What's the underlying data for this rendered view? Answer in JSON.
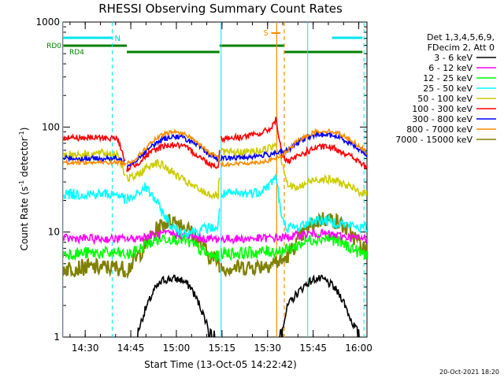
{
  "chart_data": {
    "type": "line",
    "title": "RHESSI Observing Summary Count Rates",
    "xlabel": "Start Time (13-Oct-05 14:22:42)",
    "ylabel_main": "Count Rate (s",
    "ylabel_sup1": "-1",
    "ylabel_mid": " detector",
    "ylabel_sup2": "-1",
    "ylabel_end": ")",
    "y_scale": "log",
    "ylim": [
      1,
      1000
    ],
    "xlim_minutes": [
      0,
      100
    ],
    "x_ticks": [
      {
        "label": "14:30",
        "minute": 7.3
      },
      {
        "label": "14:45",
        "minute": 22.3
      },
      {
        "label": "15:00",
        "minute": 37.3
      },
      {
        "label": "15:15",
        "minute": 52.3
      },
      {
        "label": "15:30",
        "minute": 67.3
      },
      {
        "label": "15:45",
        "minute": 82.3
      },
      {
        "label": "16:00",
        "minute": 97.3
      }
    ],
    "y_ticks": [
      {
        "label": "1",
        "value": 1
      },
      {
        "label": "10",
        "value": 10
      },
      {
        "label": "100",
        "value": 100
      },
      {
        "label": "1000",
        "value": 1000
      }
    ],
    "legend_header": [
      "Det 1,3,4,5,6,9,",
      "FDecim 2, Att 0"
    ],
    "legend_position": "right",
    "timestamp": "20-Oct-2021 18:20",
    "flags": {
      "n_label": "N",
      "s_label": "S",
      "rd0_label": "RD0",
      "rd4_label": "RD4"
    },
    "data_gaps_minutes": [
      [
        20.5,
        21
      ],
      [
        51.5,
        52
      ]
    ],
    "series": [
      {
        "name": "3 - 6 keV",
        "color": "#000000",
        "values": [
          [
            0,
            1.0
          ],
          [
            6,
            1.0
          ],
          [
            12,
            1.0
          ],
          [
            18,
            1.0
          ],
          [
            21,
            1.0
          ],
          [
            24,
            1.0
          ],
          [
            27,
            1.8
          ],
          [
            30,
            2.8
          ],
          [
            33,
            3.5
          ],
          [
            36,
            3.6
          ],
          [
            39,
            3.5
          ],
          [
            42,
            3.0
          ],
          [
            45,
            2.0
          ],
          [
            48,
            1.2
          ],
          [
            51,
            1.0
          ],
          [
            52,
            1.0
          ],
          [
            58,
            1.0
          ],
          [
            64,
            1.0
          ],
          [
            70,
            1.0
          ],
          [
            72,
            1.2
          ],
          [
            74,
            2.0
          ],
          [
            77,
            2.6
          ],
          [
            80,
            3.2
          ],
          [
            83,
            3.6
          ],
          [
            86,
            3.5
          ],
          [
            89,
            3.0
          ],
          [
            92,
            2.3
          ],
          [
            95,
            1.4
          ],
          [
            98,
            1.0
          ],
          [
            100,
            1.0
          ]
        ]
      },
      {
        "name": "6 - 12 keV",
        "color": "#ff00ff",
        "values": [
          [
            0,
            8.7
          ],
          [
            6,
            8.7
          ],
          [
            12,
            8.6
          ],
          [
            18,
            8.6
          ],
          [
            21,
            8.6
          ],
          [
            24,
            8.7
          ],
          [
            27,
            9.0
          ],
          [
            30,
            9.4
          ],
          [
            33,
            9.6
          ],
          [
            36,
            9.6
          ],
          [
            39,
            9.4
          ],
          [
            42,
            9.0
          ],
          [
            45,
            8.8
          ],
          [
            48,
            8.6
          ],
          [
            51,
            8.6
          ],
          [
            52,
            8.6
          ],
          [
            58,
            8.6
          ],
          [
            64,
            8.7
          ],
          [
            70,
            8.8
          ],
          [
            72,
            8.8
          ],
          [
            74,
            9.0
          ],
          [
            77,
            9.3
          ],
          [
            80,
            9.6
          ],
          [
            83,
            9.7
          ],
          [
            86,
            9.6
          ],
          [
            89,
            9.4
          ],
          [
            92,
            9.1
          ],
          [
            95,
            8.9
          ],
          [
            98,
            8.7
          ],
          [
            100,
            8.7
          ]
        ]
      },
      {
        "name": "12 - 25 keV",
        "color": "#00ff00",
        "values": [
          [
            0,
            6.2
          ],
          [
            6,
            6.3
          ],
          [
            12,
            6.3
          ],
          [
            18,
            6.3
          ],
          [
            21,
            6.0
          ],
          [
            24,
            6.5
          ],
          [
            27,
            7.5
          ],
          [
            30,
            8.3
          ],
          [
            33,
            8.8
          ],
          [
            36,
            8.8
          ],
          [
            39,
            8.5
          ],
          [
            42,
            7.8
          ],
          [
            45,
            6.8
          ],
          [
            48,
            6.0
          ],
          [
            51,
            5.8
          ],
          [
            52,
            6.3
          ],
          [
            58,
            6.3
          ],
          [
            64,
            6.4
          ],
          [
            70,
            6.6
          ],
          [
            72,
            6.6
          ],
          [
            74,
            6.8
          ],
          [
            77,
            7.5
          ],
          [
            80,
            8.2
          ],
          [
            83,
            8.7
          ],
          [
            86,
            8.8
          ],
          [
            89,
            8.5
          ],
          [
            92,
            7.8
          ],
          [
            95,
            7.0
          ],
          [
            98,
            6.3
          ],
          [
            100,
            6.2
          ]
        ]
      },
      {
        "name": "25 - 50 keV",
        "color": "#00ffff",
        "values": [
          [
            0,
            23
          ],
          [
            6,
            23
          ],
          [
            12,
            23
          ],
          [
            18,
            23
          ],
          [
            21,
            20
          ],
          [
            24,
            22
          ],
          [
            27,
            27
          ],
          [
            30,
            21
          ],
          [
            33,
            15
          ],
          [
            36,
            11
          ],
          [
            39,
            10
          ],
          [
            42,
            10
          ],
          [
            45,
            10.5
          ],
          [
            48,
            11
          ],
          [
            51,
            11
          ],
          [
            52,
            23
          ],
          [
            58,
            23
          ],
          [
            64,
            24
          ],
          [
            68,
            28
          ],
          [
            70,
            35
          ],
          [
            72,
            13
          ],
          [
            74,
            11
          ],
          [
            77,
            11
          ],
          [
            80,
            12
          ],
          [
            83,
            13
          ],
          [
            86,
            13
          ],
          [
            89,
            12.5
          ],
          [
            92,
            12
          ],
          [
            95,
            11.5
          ],
          [
            98,
            11
          ],
          [
            100,
            11
          ]
        ]
      },
      {
        "name": "50 - 100 keV",
        "color": "#cccc00",
        "values": [
          [
            0,
            55
          ],
          [
            6,
            55
          ],
          [
            12,
            56
          ],
          [
            18,
            56
          ],
          [
            21,
            32
          ],
          [
            24,
            34
          ],
          [
            27,
            40
          ],
          [
            30,
            46
          ],
          [
            33,
            43
          ],
          [
            36,
            37
          ],
          [
            39,
            32
          ],
          [
            42,
            28
          ],
          [
            45,
            25
          ],
          [
            48,
            23
          ],
          [
            51,
            22
          ],
          [
            52,
            57
          ],
          [
            58,
            57
          ],
          [
            64,
            59
          ],
          [
            68,
            63
          ],
          [
            70,
            70
          ],
          [
            72,
            48
          ],
          [
            74,
            28
          ],
          [
            77,
            26
          ],
          [
            80,
            29
          ],
          [
            83,
            32
          ],
          [
            86,
            32
          ],
          [
            89,
            31
          ],
          [
            92,
            29
          ],
          [
            95,
            26
          ],
          [
            98,
            24
          ],
          [
            100,
            23
          ]
        ]
      },
      {
        "name": "100 - 300 keV",
        "color": "#ff0000",
        "values": [
          [
            0,
            80
          ],
          [
            6,
            79
          ],
          [
            12,
            79
          ],
          [
            18,
            78
          ],
          [
            21,
            40
          ],
          [
            24,
            44
          ],
          [
            27,
            52
          ],
          [
            30,
            60
          ],
          [
            33,
            66
          ],
          [
            36,
            68
          ],
          [
            39,
            66
          ],
          [
            42,
            60
          ],
          [
            45,
            52
          ],
          [
            48,
            45
          ],
          [
            51,
            42
          ],
          [
            52,
            78
          ],
          [
            58,
            80
          ],
          [
            64,
            85
          ],
          [
            68,
            95
          ],
          [
            70,
            118
          ],
          [
            72,
            55
          ],
          [
            74,
            46
          ],
          [
            77,
            52
          ],
          [
            80,
            58
          ],
          [
            83,
            63
          ],
          [
            86,
            65
          ],
          [
            89,
            63
          ],
          [
            92,
            58
          ],
          [
            95,
            52
          ],
          [
            98,
            45
          ],
          [
            100,
            41
          ]
        ]
      },
      {
        "name": "300 - 800 keV",
        "color": "#0000ff",
        "values": [
          [
            0,
            51
          ],
          [
            6,
            50
          ],
          [
            12,
            50
          ],
          [
            18,
            50
          ],
          [
            21,
            44
          ],
          [
            24,
            48
          ],
          [
            27,
            58
          ],
          [
            30,
            68
          ],
          [
            33,
            77
          ],
          [
            36,
            82
          ],
          [
            39,
            80
          ],
          [
            42,
            73
          ],
          [
            45,
            64
          ],
          [
            48,
            55
          ],
          [
            51,
            50
          ],
          [
            52,
            50
          ],
          [
            58,
            51
          ],
          [
            64,
            53
          ],
          [
            68,
            55
          ],
          [
            70,
            58
          ],
          [
            72,
            57
          ],
          [
            74,
            60
          ],
          [
            77,
            70
          ],
          [
            80,
            79
          ],
          [
            83,
            84
          ],
          [
            86,
            85
          ],
          [
            89,
            83
          ],
          [
            92,
            77
          ],
          [
            95,
            69
          ],
          [
            98,
            60
          ],
          [
            100,
            55
          ]
        ]
      },
      {
        "name": "800 - 7000 keV",
        "color": "#ff8c00",
        "values": [
          [
            0,
            46
          ],
          [
            6,
            46
          ],
          [
            12,
            46
          ],
          [
            18,
            46
          ],
          [
            21,
            45
          ],
          [
            24,
            50
          ],
          [
            27,
            62
          ],
          [
            30,
            75
          ],
          [
            33,
            85
          ],
          [
            36,
            90
          ],
          [
            39,
            88
          ],
          [
            42,
            80
          ],
          [
            45,
            68
          ],
          [
            48,
            57
          ],
          [
            51,
            52
          ],
          [
            52,
            44
          ],
          [
            58,
            45
          ],
          [
            64,
            46
          ],
          [
            68,
            48
          ],
          [
            70,
            51
          ],
          [
            72,
            53
          ],
          [
            74,
            60
          ],
          [
            77,
            73
          ],
          [
            80,
            83
          ],
          [
            83,
            90
          ],
          [
            86,
            92
          ],
          [
            89,
            90
          ],
          [
            92,
            84
          ],
          [
            95,
            74
          ],
          [
            98,
            64
          ],
          [
            100,
            57
          ]
        ]
      },
      {
        "name": "7000 - 15000 keV",
        "color": "#808000",
        "values": [
          [
            0,
            4.5
          ],
          [
            6,
            4.6
          ],
          [
            12,
            4.6
          ],
          [
            18,
            4.6
          ],
          [
            21,
            4.4
          ],
          [
            24,
            5.5
          ],
          [
            27,
            7.5
          ],
          [
            30,
            10
          ],
          [
            33,
            12
          ],
          [
            36,
            13
          ],
          [
            39,
            12
          ],
          [
            42,
            10
          ],
          [
            45,
            8
          ],
          [
            48,
            6
          ],
          [
            51,
            5.3
          ],
          [
            52,
            4.6
          ],
          [
            58,
            4.6
          ],
          [
            64,
            4.7
          ],
          [
            68,
            5.0
          ],
          [
            70,
            5.2
          ],
          [
            72,
            5.2
          ],
          [
            74,
            6
          ],
          [
            77,
            8
          ],
          [
            80,
            10.5
          ],
          [
            83,
            12.5
          ],
          [
            86,
            13.5
          ],
          [
            89,
            13
          ],
          [
            92,
            11.5
          ],
          [
            95,
            9.5
          ],
          [
            98,
            7.5
          ],
          [
            100,
            6.5
          ]
        ]
      }
    ],
    "markers": {
      "cyan_solid_minutes": [
        0,
        52,
        80.5
      ],
      "cyan_dashed_minutes": [
        16.2,
        99
      ],
      "orange_solid_minute": 70.3,
      "orange_dashed_minute": 72.8
    },
    "attenuator_bars": {
      "cyan_segments": [
        [
          0,
          16.2
        ],
        [
          88.5,
          98.5
        ]
      ],
      "green_segments_rd0": [
        [
          0,
          21
        ],
        [
          51.5,
          72.8
        ]
      ],
      "green_segments_rd4": [
        [
          21,
          51.5
        ],
        [
          72.8,
          98.5
        ]
      ],
      "orange_segment": [
        68.5,
        71.5
      ]
    }
  }
}
